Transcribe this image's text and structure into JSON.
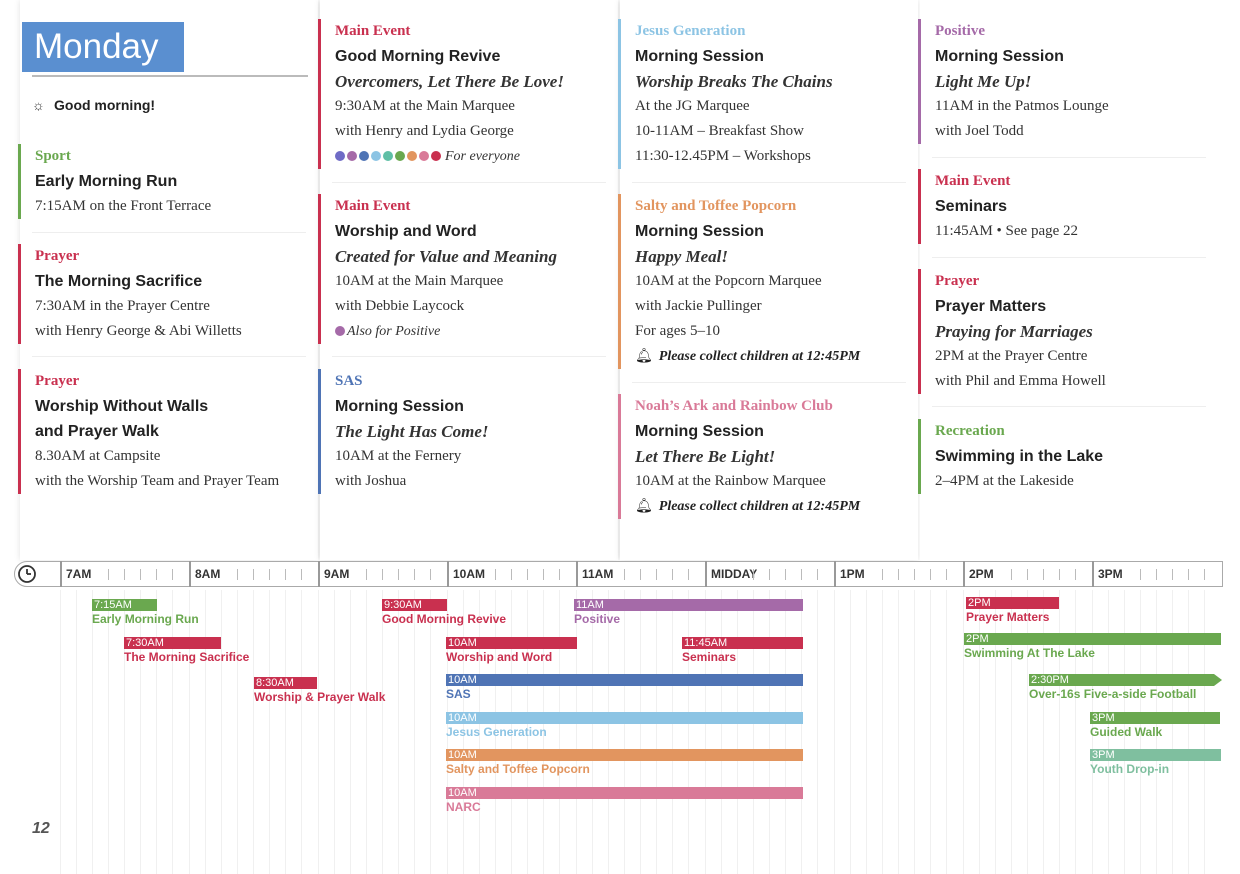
{
  "day": "Monday",
  "greeting": "Good morning!",
  "page_number": "12",
  "colors": {
    "sport": "#6aa84f",
    "prayer": "#c9304f",
    "main_event": "#c9304f",
    "sas": "#4f74b5",
    "jesus_generation": "#8cc4e4",
    "salty": "#e2955f",
    "noahs_ark": "#d97a98",
    "positive": "#a56aa8",
    "recreation": "#6aa84f",
    "header": "#5a8fd0"
  },
  "events": {
    "early_run": {
      "category": "Sport",
      "title": "Early Morning Run",
      "lines": [
        "7:15AM on the Front Terrace"
      ]
    },
    "morning_sacrifice": {
      "category": "Prayer",
      "title": "The Morning Sacrifice",
      "lines": [
        "7:30AM in the Prayer Centre",
        "with Henry George & Abi Willetts"
      ]
    },
    "worship_walls": {
      "category": "Prayer",
      "title1": "Worship Without Walls",
      "title2": "and Prayer Walk",
      "lines": [
        "8.30AM at Campsite",
        "with the Worship Team and Prayer Team"
      ]
    },
    "good_morning_revive": {
      "category": "Main Event",
      "title": "Good Morning Revive",
      "subtitle": "Overcomers, Let There Be Love!",
      "lines": [
        "9:30AM at the Main Marquee",
        "with Henry and Lydia George"
      ],
      "note": "For everyone",
      "dot_colors": [
        "#6f6bc6",
        "#a56aa8",
        "#4f74b5",
        "#8cc4e4",
        "#5fbfa6",
        "#6aa84f",
        "#e2955f",
        "#d97a98",
        "#c9304f"
      ]
    },
    "worship_word": {
      "category": "Main Event",
      "title": "Worship and Word",
      "subtitle": "Created for Value and Meaning",
      "lines": [
        "10AM at the Main Marquee",
        "with Debbie Laycock"
      ],
      "note": "Also for Positive"
    },
    "sas": {
      "category": "SAS",
      "title": "Morning Session",
      "subtitle": "The Light Has Come!",
      "lines": [
        "10AM at the Fernery",
        "with Joshua"
      ]
    },
    "jesus_gen": {
      "category": "Jesus Generation",
      "title": "Morning Session",
      "subtitle": "Worship Breaks The Chains",
      "lines": [
        "At the JG Marquee",
        "10-11AM – Breakfast Show",
        "11:30-12.45PM – Workshops"
      ]
    },
    "salty": {
      "category": "Salty and Toffee Popcorn",
      "title": "Morning Session",
      "subtitle": "Happy Meal!",
      "lines": [
        "10AM at the Popcorn Marquee",
        "with Jackie Pullinger",
        "For ages 5–10"
      ],
      "alert": "Please collect children at 12:45PM"
    },
    "noahs": {
      "category": "Noah’s Ark and Rainbow Club",
      "title": "Morning Session",
      "subtitle": "Let There Be Light!",
      "lines": [
        "10AM at the Rainbow Marquee"
      ],
      "alert": "Please collect children at 12:45PM"
    },
    "positive": {
      "category": "Positive",
      "title": "Morning Session",
      "subtitle": "Light Me Up!",
      "lines": [
        "11AM in the Patmos Lounge",
        "with Joel Todd"
      ]
    },
    "seminars": {
      "category": "Main Event",
      "title": "Seminars",
      "lines": [
        "11:45AM • See page 22"
      ]
    },
    "prayer_matters": {
      "category": "Prayer",
      "title": "Prayer Matters",
      "subtitle": "Praying for Marriages",
      "lines": [
        "2PM at the Prayer Centre",
        "with Phil and Emma Howell"
      ]
    },
    "swimming": {
      "category": "Recreation",
      "title": "Swimming in the Lake",
      "lines": [
        "2–4PM at the Lakeside"
      ]
    }
  },
  "timeline": {
    "hours": [
      "7AM",
      "8AM",
      "9AM",
      "10AM",
      "11AM",
      "MIDDAY",
      "1PM",
      "2PM",
      "3PM"
    ],
    "bars": [
      {
        "start": "7:15AM",
        "label": "Early Morning Run",
        "color": "#6aa84f"
      },
      {
        "start": "7:30AM",
        "label": "The Morning Sacrifice",
        "color": "#c9304f"
      },
      {
        "start": "8:30AM",
        "label": "Worship & Prayer Walk",
        "color": "#c9304f"
      },
      {
        "start": "9:30AM",
        "label": "Good Morning Revive",
        "color": "#c9304f"
      },
      {
        "start": "10AM",
        "label": "Worship and Word",
        "color": "#c9304f"
      },
      {
        "start": "10AM",
        "label": "SAS",
        "color": "#4f74b5"
      },
      {
        "start": "10AM",
        "label": "Jesus Generation",
        "color": "#8cc4e4"
      },
      {
        "start": "10AM",
        "label": "Salty and Toffee Popcorn",
        "color": "#e2955f"
      },
      {
        "start": "10AM",
        "label": "NARC",
        "color": "#d97a98"
      },
      {
        "start": "11AM",
        "label": "Positive",
        "color": "#a56aa8"
      },
      {
        "start": "11:45AM",
        "label": "Seminars",
        "color": "#c9304f"
      },
      {
        "start": "2PM",
        "label": "Prayer Matters",
        "color": "#c9304f"
      },
      {
        "start": "2PM",
        "label": "Swimming At The Lake",
        "color": "#6aa84f"
      },
      {
        "start": "2:30PM",
        "label": "Over-16s Five-a-side Football",
        "color": "#6aa84f"
      },
      {
        "start": "3PM",
        "label": "Guided Walk",
        "color": "#6aa84f"
      },
      {
        "start": "3PM",
        "label": "Youth Drop-in",
        "color": "#7fbf9f"
      }
    ]
  }
}
